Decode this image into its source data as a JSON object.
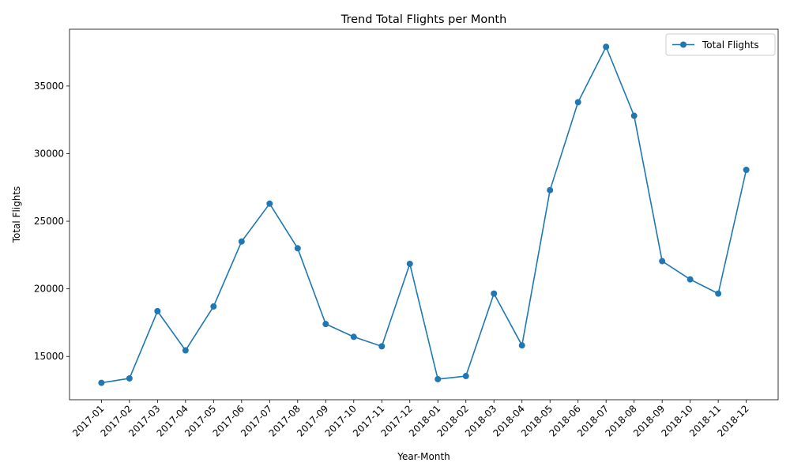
{
  "chart_data": {
    "type": "line",
    "title": "Trend Total Flights per Month",
    "xlabel": "Year-Month",
    "ylabel": "Total Flights",
    "categories": [
      "2017-01",
      "2017-02",
      "2017-03",
      "2017-04",
      "2017-05",
      "2017-06",
      "2017-07",
      "2017-08",
      "2017-09",
      "2017-10",
      "2017-11",
      "2017-12",
      "2018-01",
      "2018-02",
      "2018-03",
      "2018-04",
      "2018-05",
      "2018-06",
      "2018-07",
      "2018-08",
      "2018-09",
      "2018-10",
      "2018-11",
      "2018-12"
    ],
    "series": [
      {
        "name": "Total Flights",
        "color": "#1f77b4",
        "marker": "circle",
        "values": [
          13050,
          13380,
          18350,
          15450,
          18700,
          23500,
          26300,
          23000,
          17400,
          16450,
          15750,
          21850,
          13320,
          13550,
          19650,
          15820,
          27300,
          33800,
          37900,
          32800,
          22050,
          20700,
          19650,
          28800
        ]
      }
    ],
    "ylim": [
      11800,
      39200
    ],
    "yticks": [
      15000,
      20000,
      25000,
      30000,
      35000
    ],
    "grid": false,
    "legend_position": "top-right"
  }
}
